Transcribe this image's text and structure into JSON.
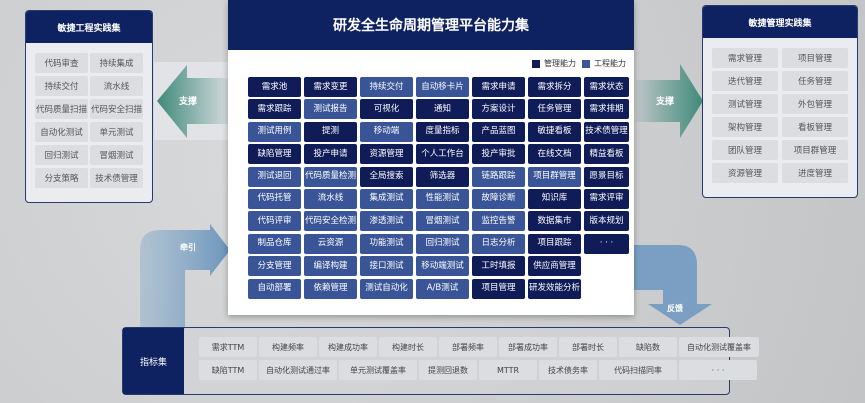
{
  "left_panel": {
    "title": "敏捷工程实践集",
    "items": [
      "代码审查",
      "持续集成",
      "持续交付",
      "流水线",
      "代码质量扫描",
      "代码安全扫描",
      "自动化测试",
      "单元测试",
      "回归测试",
      "冒烟测试",
      "分支策略",
      "技术债管理"
    ]
  },
  "right_panel": {
    "title": "敏捷管理实践集",
    "items": [
      "需求管理",
      "项目管理",
      "迭代管理",
      "任务管理",
      "测试管理",
      "外包管理",
      "架构管理",
      "看板管理",
      "团队管理",
      "项目群管理",
      "资源管理",
      "进度管理"
    ]
  },
  "arrows": {
    "left": "支撑",
    "right": "支撑",
    "pull": "牵引",
    "feedback": "反馈"
  },
  "center": {
    "title": "研发全生命周期管理平台能力集",
    "legend": [
      {
        "label": "管理能力",
        "color": "#0f1c58"
      },
      {
        "label": "工程能力",
        "color": "#3a5597"
      }
    ],
    "rows": [
      [
        [
          "需求池",
          "m"
        ],
        [
          "需求变更",
          "m"
        ],
        [
          "持续交付",
          "e"
        ],
        [
          "自动移卡片",
          "e"
        ],
        [
          "需求申请",
          "m"
        ],
        [
          "需求拆分",
          "m"
        ],
        [
          "需求状态",
          "m"
        ]
      ],
      [
        [
          "需求跟踪",
          "m"
        ],
        [
          "测试报告",
          "e"
        ],
        [
          "可视化",
          "m"
        ],
        [
          "通知",
          "m"
        ],
        [
          "方案设计",
          "m"
        ],
        [
          "任务管理",
          "m"
        ],
        [
          "需求排期",
          "m"
        ]
      ],
      [
        [
          "测试用例",
          "e"
        ],
        [
          "提测",
          "m"
        ],
        [
          "移动端",
          "e"
        ],
        [
          "度量指标",
          "m"
        ],
        [
          "产品蓝图",
          "m"
        ],
        [
          "敏捷看板",
          "m"
        ],
        [
          "技术债管理",
          "m"
        ]
      ],
      [
        [
          "缺陷管理",
          "m"
        ],
        [
          "投产申请",
          "m"
        ],
        [
          "资源管理",
          "m"
        ],
        [
          "个人工作台",
          "m"
        ],
        [
          "投产审批",
          "m"
        ],
        [
          "在线文档",
          "m"
        ],
        [
          "精益看板",
          "m"
        ]
      ],
      [
        [
          "测试退回",
          "e"
        ],
        [
          "代码质量检测",
          "e"
        ],
        [
          "全局搜索",
          "m"
        ],
        [
          "筛选器",
          "m"
        ],
        [
          "链路跟踪",
          "e"
        ],
        [
          "项目群管理",
          "e"
        ],
        [
          "愿景目标",
          "m"
        ]
      ],
      [
        [
          "代码托管",
          "e"
        ],
        [
          "流水线",
          "e"
        ],
        [
          "集成测试",
          "e"
        ],
        [
          "性能测试",
          "e"
        ],
        [
          "故障诊断",
          "e"
        ],
        [
          "知识库",
          "m"
        ],
        [
          "需求评审",
          "m"
        ]
      ],
      [
        [
          "代码评审",
          "e"
        ],
        [
          "代码安全检测",
          "e"
        ],
        [
          "渗透测试",
          "e"
        ],
        [
          "冒烟测试",
          "e"
        ],
        [
          "监控告警",
          "e"
        ],
        [
          "数据集市",
          "m"
        ],
        [
          "版本规划",
          "m"
        ]
      ],
      [
        [
          "制品仓库",
          "e"
        ],
        [
          "云资源",
          "e"
        ],
        [
          "功能测试",
          "e"
        ],
        [
          "回归测试",
          "e"
        ],
        [
          "日志分析",
          "e"
        ],
        [
          "项目跟踪",
          "m"
        ],
        [
          "· · ·",
          "m"
        ]
      ],
      [
        [
          "分支管理",
          "e"
        ],
        [
          "编译构建",
          "e"
        ],
        [
          "接口测试",
          "e"
        ],
        [
          "移动端测试",
          "e"
        ],
        [
          "工时填报",
          "m"
        ],
        [
          "供应商管理",
          "m"
        ]
      ],
      [
        [
          "自动部署",
          "e"
        ],
        [
          "依赖管理",
          "e"
        ],
        [
          "测试自动化",
          "e"
        ],
        [
          "A/B测试",
          "e"
        ],
        [
          "项目管理",
          "m"
        ],
        [
          "研发效能分析",
          "m"
        ]
      ]
    ]
  },
  "metrics": {
    "title": "指标集",
    "row1": [
      "需求TTM",
      "构建频率",
      "构建成功率",
      "构建时长",
      "部署频率",
      "部署成功率",
      "部署时长",
      "缺陷数",
      "自动化测试覆盖率"
    ],
    "row2": [
      "缺陷TTM",
      "自动化测试通过率",
      "单元测试覆盖率",
      "提测回退数",
      "MTTR",
      "技术债务率",
      "代码扫描同率",
      "· · ·"
    ]
  }
}
